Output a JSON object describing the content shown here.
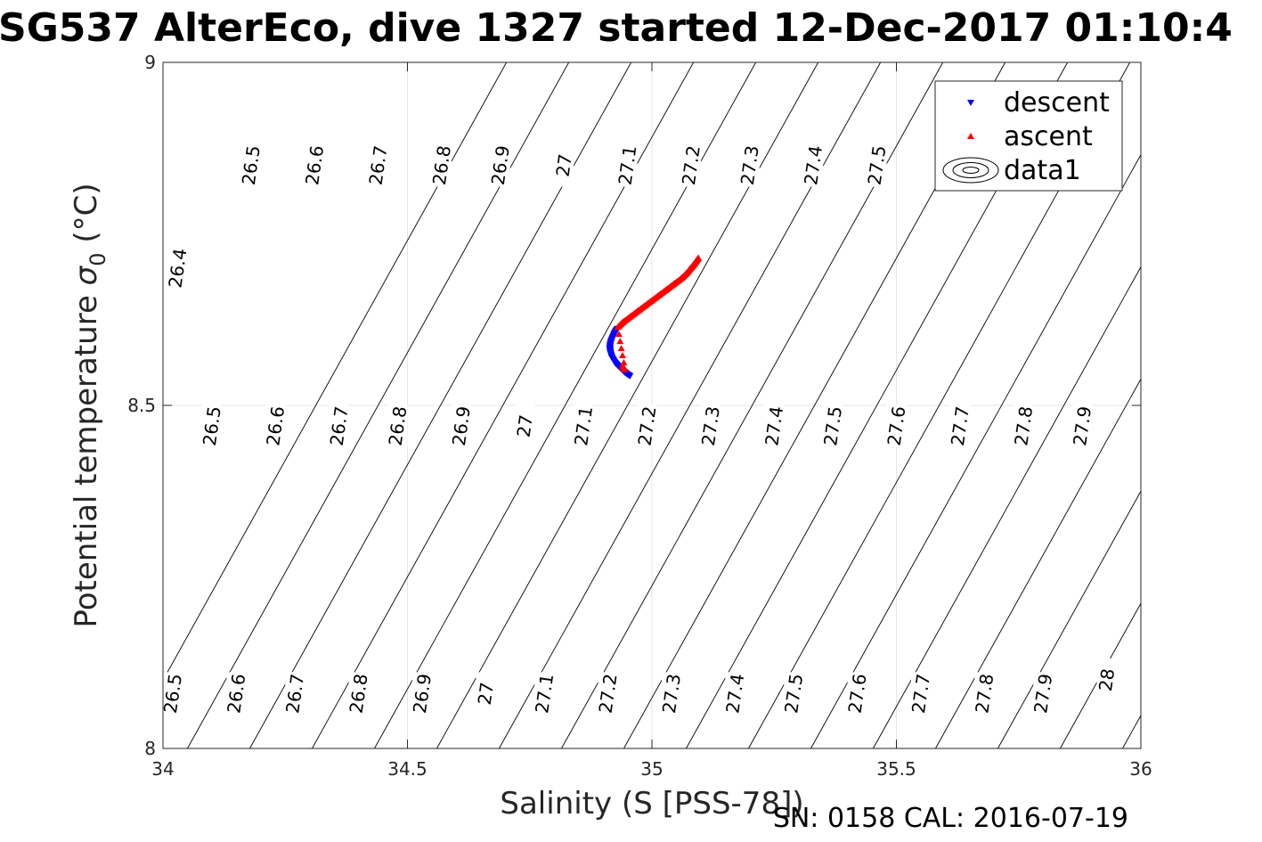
{
  "chart_data": {
    "type": "scatter",
    "title": "SG537 AlterEco, dive 1327 started 12-Dec-2017 01:10:4",
    "xlabel": "Salinity (S [PSS-78])",
    "ylabel_main": "Potential temperature ",
    "ylabel_sigma": "σ",
    "ylabel_sub": "0",
    "ylabel_units": " (°C)",
    "xlim": [
      34,
      36
    ],
    "ylim": [
      8,
      9
    ],
    "xticks": [
      34,
      34.5,
      35,
      35.5,
      36
    ],
    "xtick_labels": [
      "34",
      "34.5",
      "35",
      "35.5",
      "36"
    ],
    "yticks": [
      8,
      8.5,
      9
    ],
    "ytick_labels": [
      "8",
      "8.5",
      "9"
    ],
    "grid": true,
    "legend_position": "top-right",
    "legend": [
      {
        "label": "descent",
        "marker": "triangle-down",
        "color": "#0000ff"
      },
      {
        "label": "ascent",
        "marker": "triangle-up",
        "color": "#ff0000"
      },
      {
        "label": "data1",
        "marker": "contour",
        "color": "#000000"
      }
    ],
    "contour_levels": [
      26.4,
      26.5,
      26.6,
      26.7,
      26.8,
      26.9,
      27.0,
      27.1,
      27.2,
      27.3,
      27.4,
      27.5,
      27.6,
      27.7,
      27.8,
      27.9,
      28.0
    ],
    "contour_labels": [
      {
        "text": "26.4",
        "x": 34.03,
        "y": 8.7
      },
      {
        "text": "26.5",
        "x": 34.18,
        "y": 8.85
      },
      {
        "text": "26.6",
        "x": 34.31,
        "y": 8.85
      },
      {
        "text": "26.7",
        "x": 34.44,
        "y": 8.85
      },
      {
        "text": "26.8",
        "x": 34.57,
        "y": 8.85
      },
      {
        "text": "26.9",
        "x": 34.69,
        "y": 8.85
      },
      {
        "text": "27",
        "x": 34.82,
        "y": 8.85
      },
      {
        "text": "27.1",
        "x": 34.95,
        "y": 8.85
      },
      {
        "text": "27.2",
        "x": 35.08,
        "y": 8.85
      },
      {
        "text": "27.3",
        "x": 35.2,
        "y": 8.85
      },
      {
        "text": "27.4",
        "x": 35.33,
        "y": 8.85
      },
      {
        "text": "27.5",
        "x": 35.46,
        "y": 8.85
      },
      {
        "text": "27.8",
        "x": 35.71,
        "y": 8.85
      },
      {
        "text": "27.9",
        "x": 35.84,
        "y": 8.85
      },
      {
        "text": "26.5",
        "x": 34.1,
        "y": 8.47
      },
      {
        "text": "26.6",
        "x": 34.23,
        "y": 8.47
      },
      {
        "text": "26.7",
        "x": 34.36,
        "y": 8.47
      },
      {
        "text": "26.8",
        "x": 34.48,
        "y": 8.47
      },
      {
        "text": "26.9",
        "x": 34.61,
        "y": 8.47
      },
      {
        "text": "27",
        "x": 34.74,
        "y": 8.47
      },
      {
        "text": "27.1",
        "x": 34.86,
        "y": 8.47
      },
      {
        "text": "27.2",
        "x": 34.99,
        "y": 8.47
      },
      {
        "text": "27.3",
        "x": 35.12,
        "y": 8.47
      },
      {
        "text": "27.4",
        "x": 35.25,
        "y": 8.47
      },
      {
        "text": "27.5",
        "x": 35.37,
        "y": 8.47
      },
      {
        "text": "27.6",
        "x": 35.5,
        "y": 8.47
      },
      {
        "text": "27.7",
        "x": 35.63,
        "y": 8.47
      },
      {
        "text": "27.8",
        "x": 35.76,
        "y": 8.47
      },
      {
        "text": "27.9",
        "x": 35.88,
        "y": 8.47
      },
      {
        "text": "26.5",
        "x": 34.02,
        "y": 8.08
      },
      {
        "text": "26.6",
        "x": 34.15,
        "y": 8.08
      },
      {
        "text": "26.7",
        "x": 34.27,
        "y": 8.08
      },
      {
        "text": "26.8",
        "x": 34.4,
        "y": 8.08
      },
      {
        "text": "26.9",
        "x": 34.53,
        "y": 8.08
      },
      {
        "text": "27",
        "x": 34.66,
        "y": 8.08
      },
      {
        "text": "27.1",
        "x": 34.78,
        "y": 8.08
      },
      {
        "text": "27.2",
        "x": 34.91,
        "y": 8.08
      },
      {
        "text": "27.3",
        "x": 35.04,
        "y": 8.08
      },
      {
        "text": "27.4",
        "x": 35.17,
        "y": 8.08
      },
      {
        "text": "27.5",
        "x": 35.29,
        "y": 8.08
      },
      {
        "text": "27.6",
        "x": 35.42,
        "y": 8.08
      },
      {
        "text": "27.7",
        "x": 35.55,
        "y": 8.08
      },
      {
        "text": "27.8",
        "x": 35.68,
        "y": 8.08
      },
      {
        "text": "27.9",
        "x": 35.8,
        "y": 8.08
      },
      {
        "text": "28",
        "x": 35.93,
        "y": 8.1
      }
    ],
    "series": [
      {
        "name": "descent",
        "marker": "triangle-down",
        "color": "#0000ff",
        "x": [
          34.955,
          34.945,
          34.935,
          34.925,
          34.918,
          34.915,
          34.914,
          34.915,
          34.917,
          34.92,
          34.923,
          34.926,
          34.93
        ],
        "y": [
          8.543,
          8.548,
          8.555,
          8.562,
          8.57,
          8.577,
          8.583,
          8.589,
          8.594,
          8.599,
          8.604,
          8.608,
          8.612
        ]
      },
      {
        "name": "ascent",
        "marker": "triangle-up",
        "color": "#ff0000",
        "x": [
          34.94,
          34.945,
          34.93,
          34.94,
          34.955,
          34.97,
          34.985,
          35.0,
          35.015,
          35.03,
          35.045,
          35.06,
          35.07,
          35.078,
          35.085,
          35.09,
          35.095
        ],
        "y": [
          8.558,
          8.552,
          8.614,
          8.621,
          8.629,
          8.637,
          8.645,
          8.653,
          8.661,
          8.669,
          8.677,
          8.685,
          8.692,
          8.699,
          8.705,
          8.71,
          8.715
        ]
      }
    ]
  },
  "footer": "SN: 0158  CAL: 2016-07-19"
}
